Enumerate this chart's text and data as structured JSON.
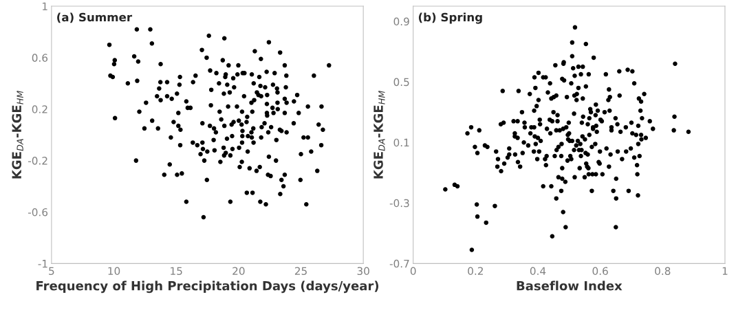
{
  "chart_data": [
    {
      "type": "scatter",
      "title": "(a) Summer",
      "xlabel": "Frequency of High Precipitation Days (days/year)",
      "ylabel": "KGE$_{DA}$-KGE$_{HM}$",
      "xlim": [
        5,
        30
      ],
      "xticks": [
        5,
        10,
        15,
        20,
        25,
        30
      ],
      "ylim": [
        -1,
        1
      ],
      "yticks": [
        -1,
        -0.6,
        -0.2,
        0.2,
        0.6,
        1
      ],
      "grid": false,
      "marker": "circle",
      "series": [
        {
          "color": "#000000",
          "x": [
            9.64,
            11.84,
            12.92,
            13.05,
            9.72,
            9.91,
            10.07,
            10.02,
            10.09,
            11.63,
            11.95,
            11.12,
            11.87,
            12.04,
            12.58,
            12.45,
            13.07,
            11.78,
            13.75,
            13.46,
            13.63,
            13.73,
            13.75,
            13.54,
            14.27,
            14.27,
            14.64,
            15.06,
            15.26,
            15.3,
            15.17,
            14.79,
            15.17,
            15.34,
            14.57,
            15.32,
            14.48,
            14.04,
            15.07,
            15.45,
            15.81,
            15.92,
            16.14,
            16.55,
            16.35,
            15.81,
            16.33,
            16.69,
            16.95,
            17.1,
            17.14,
            17.49,
            17.25,
            17.46,
            17.19,
            17.06,
            17.62,
            17.44,
            17.72,
            17.81,
            17.78,
            17.1,
            17.7,
            18.03,
            18.18,
            18.0,
            18.07,
            18.54,
            18.22,
            18.43,
            18.73,
            18.86,
            18.48,
            18.61,
            18.82,
            18.86,
            18.93,
            18.97,
            19.09,
            19.2,
            19.16,
            19.29,
            19.07,
            18.8,
            18.84,
            18.97,
            19.34,
            19.34,
            19.48,
            19.57,
            19.64,
            19.44,
            19.6,
            19.51,
            19.87,
            19.91,
            19.98,
            20.02,
            20.04,
            20.09,
            20.24,
            20.28,
            20.33,
            20.47,
            20.44,
            20.31,
            20.3,
            20.28,
            20.26,
            20.64,
            20.69,
            20.75,
            20.73,
            20.66,
            20.88,
            21.06,
            21.12,
            21.1,
            21.03,
            21.03,
            21.06,
            21.18,
            21.21,
            21.25,
            21.3,
            21.2,
            21.44,
            21.47,
            21.59,
            21.66,
            21.79,
            21.75,
            21.81,
            21.7,
            21.74,
            21.85,
            21.81,
            22.08,
            22.19,
            22.13,
            22.29,
            22.27,
            22.27,
            22.29,
            22.25,
            22.43,
            22.38,
            22.43,
            22.36,
            22.57,
            22.61,
            22.72,
            22.8,
            22.76,
            22.89,
            23.03,
            23.0,
            23.08,
            23.12,
            23.12,
            23.14,
            23.33,
            23.31,
            23.44,
            23.34,
            23.44,
            23.6,
            23.7,
            23.7,
            23.83,
            23.79,
            23.7,
            23.85,
            23.7,
            23.85,
            24.44,
            24.7,
            24.42,
            24.82,
            24.96,
            25.0,
            25.21,
            25.56,
            25.56,
            25.43,
            25.82,
            26.04,
            26.31,
            26.42,
            26.65,
            26.76,
            26.63,
            27.25
          ],
          "values": [
            0.7,
            0.82,
            0.82,
            0.71,
            0.46,
            0.45,
            0.58,
            0.55,
            0.13,
            0.61,
            0.57,
            0.4,
            0.42,
            0.18,
            0.25,
            0.05,
            0.11,
            -0.2,
            0.55,
            0.3,
            0.36,
            0.41,
            0.27,
            0.05,
            0.41,
            0.3,
            0.28,
            0.32,
            0.39,
            0.45,
            0.17,
            0.1,
            0.07,
            0.04,
            -0.02,
            -0.08,
            -0.23,
            -0.31,
            -0.31,
            -0.3,
            0.26,
            0.21,
            0.21,
            0.46,
            0.41,
            -0.52,
            -0.06,
            -0.08,
            -0.15,
            -0.06,
            -0.11,
            -0.13,
            -0.2,
            -0.35,
            -0.64,
            0.66,
            0.77,
            0.6,
            0.5,
            0.35,
            0.23,
            0.09,
            0.07,
            0.05,
            0.02,
            -0.04,
            -0.12,
            -0.21,
            0.48,
            0.4,
            0.58,
            0.75,
            0.18,
            0.12,
            0.32,
            0.07,
            0.45,
            0.47,
            0.39,
            0.54,
            0.22,
            0.33,
            -0.03,
            -0.1,
            -0.16,
            -0.14,
            -0.16,
            -0.52,
            -0.01,
            0.44,
            0.37,
            0.08,
            0.1,
            -0.11,
            0.22,
            0.47,
            0.54,
            0.11,
            -0.1,
            -0.25,
            0.08,
            0.18,
            0.48,
            0.48,
            0.3,
            0.03,
            -0.01,
            -0.06,
            -0.21,
            0.1,
            0.14,
            -0.01,
            -0.13,
            -0.45,
            -0.26,
            0.47,
            -0.45,
            0.18,
            0.25,
            0.02,
            -0.02,
            0.05,
            0.4,
            0.27,
            0.65,
            -0.06,
            -0.28,
            0.33,
            0.31,
            0.45,
            0.59,
            0.38,
            0.3,
            -0.25,
            -0.52,
            0.06,
            -0.02,
            0.09,
            -0.54,
            0.37,
            0.31,
            0.24,
            0.17,
            0.15,
            0.49,
            0.72,
            0.02,
            -0.17,
            -0.31,
            -0.32,
            0.06,
            0.21,
            0.17,
            0.39,
            0.48,
            -0.04,
            -0.2,
            0.36,
            0.33,
            0.25,
            0.2,
            0.64,
            0.04,
            0.03,
            -0.46,
            -0.35,
            -0.4,
            -0.31,
            0.54,
            0.46,
            0.37,
            0.28,
            0.25,
            0.17,
            0.02,
            0.26,
            0.31,
            0.09,
            0.17,
            -0.35,
            -0.15,
            -0.02,
            0.22,
            -0.02,
            -0.54,
            -0.13,
            0.46,
            -0.28,
            0.08,
            0.22,
            0.04,
            -0.08,
            0.54
          ]
        }
      ]
    },
    {
      "type": "scatter",
      "title": "(b) Spring",
      "xlabel": "Baseflow Index",
      "ylabel": "KGE$_{DA}$-KGE$_{HM}$",
      "xlim": [
        0,
        1
      ],
      "xticks": [
        0,
        0.2,
        0.4,
        0.6,
        0.8,
        1
      ],
      "ylim": [
        -0.7,
        1.0
      ],
      "yticks": [
        -0.7,
        -0.3,
        0.1,
        0.5,
        0.9
      ],
      "grid": false,
      "marker": "circle",
      "series": [
        {
          "color": "#000000",
          "x": [
            0.103,
            0.133,
            0.142,
            0.174,
            0.186,
            0.212,
            0.198,
            0.206,
            0.204,
            0.206,
            0.234,
            0.188,
            0.23,
            0.238,
            0.262,
            0.266,
            0.272,
            0.27,
            0.282,
            0.292,
            0.281,
            0.29,
            0.287,
            0.303,
            0.308,
            0.308,
            0.322,
            0.335,
            0.326,
            0.326,
            0.335,
            0.327,
            0.336,
            0.343,
            0.338,
            0.349,
            0.351,
            0.355,
            0.357,
            0.358,
            0.369,
            0.374,
            0.376,
            0.379,
            0.388,
            0.387,
            0.388,
            0.392,
            0.389,
            0.39,
            0.393,
            0.396,
            0.398,
            0.4,
            0.402,
            0.402,
            0.404,
            0.406,
            0.407,
            0.409,
            0.417,
            0.417,
            0.425,
            0.423,
            0.426,
            0.428,
            0.429,
            0.432,
            0.439,
            0.438,
            0.44,
            0.443,
            0.443,
            0.446,
            0.446,
            0.45,
            0.451,
            0.454,
            0.456,
            0.459,
            0.459,
            0.459,
            0.46,
            0.463,
            0.466,
            0.463,
            0.466,
            0.47,
            0.475,
            0.475,
            0.478,
            0.478,
            0.478,
            0.476,
            0.481,
            0.482,
            0.483,
            0.484,
            0.481,
            0.488,
            0.489,
            0.491,
            0.493,
            0.495,
            0.496,
            0.5,
            0.499,
            0.497,
            0.502,
            0.504,
            0.507,
            0.507,
            0.51,
            0.51,
            0.51,
            0.513,
            0.519,
            0.518,
            0.517,
            0.516,
            0.516,
            0.518,
            0.523,
            0.524,
            0.525,
            0.528,
            0.53,
            0.53,
            0.532,
            0.534,
            0.536,
            0.538,
            0.538,
            0.54,
            0.541,
            0.543,
            0.544,
            0.544,
            0.545,
            0.55,
            0.551,
            0.553,
            0.554,
            0.554,
            0.555,
            0.558,
            0.56,
            0.56,
            0.563,
            0.563,
            0.562,
            0.565,
            0.565,
            0.568,
            0.57,
            0.573,
            0.575,
            0.573,
            0.577,
            0.577,
            0.579,
            0.584,
            0.585,
            0.586,
            0.586,
            0.587,
            0.589,
            0.592,
            0.595,
            0.598,
            0.599,
            0.601,
            0.605,
            0.607,
            0.614,
            0.618,
            0.62,
            0.626,
            0.628,
            0.628,
            0.63,
            0.631,
            0.633,
            0.636,
            0.636,
            0.642,
            0.649,
            0.65,
            0.651,
            0.651,
            0.655,
            0.656,
            0.661,
            0.662,
            0.665,
            0.67,
            0.682,
            0.683,
            0.688,
            0.691,
            0.698,
            0.7,
            0.703,
            0.703,
            0.709,
            0.709,
            0.715,
            0.718,
            0.719,
            0.721,
            0.722,
            0.722,
            0.726,
            0.724,
            0.729,
            0.731,
            0.731,
            0.734,
            0.732,
            0.741,
            0.746,
            0.759,
            0.769,
            0.836,
            0.838,
            0.84,
            0.883
          ],
          "values": [
            -0.21,
            -0.18,
            -0.19,
            0.16,
            0.2,
            0.18,
            0.07,
            0.03,
            -0.31,
            -0.39,
            -0.43,
            -0.61,
            0.08,
            0.07,
            -0.32,
            0.04,
            -0.01,
            -0.06,
            -0.09,
            -0.04,
            0.22,
            0.23,
            0.44,
            0.0,
            0.06,
            0.02,
            0.24,
            0.24,
            0.16,
            0.14,
            0.13,
            0.02,
            -0.03,
            -0.06,
            0.44,
            0.3,
            0.03,
            0.1,
            0.23,
            0.2,
            0.08,
            0.42,
            0.16,
            0.2,
            0.2,
            0.04,
            0.31,
            0.46,
            0.53,
            0.14,
            0.09,
            0.34,
            -0.01,
            0.13,
            0.56,
            0.38,
            0.04,
            0.25,
            0.22,
            0.11,
            -0.19,
            0.53,
            0.53,
            -0.01,
            -0.05,
            0.01,
            0.19,
            0.43,
            0.49,
            0.25,
            0.16,
            -0.19,
            0.39,
            -0.52,
            0.24,
            0.3,
            0.4,
            0.01,
            0.61,
            0.18,
            0.41,
            -0.27,
            0.05,
            0.28,
            0.07,
            0.24,
            -0.13,
            0.18,
            0.01,
            -0.22,
            -0.14,
            -0.07,
            0.52,
            0.09,
            0.19,
            0.62,
            0.63,
            0.51,
            -0.36,
            -0.16,
            -0.46,
            0.2,
            0.4,
            -0.02,
            0.15,
            0.16,
            0.23,
            0.12,
            0.11,
            0.01,
            0.49,
            -0.01,
            0.76,
            0.67,
            0.11,
            0.59,
            0.86,
            0.54,
            0.41,
            0.29,
            0.05,
            -0.13,
            0.08,
            0.38,
            0.42,
            0.11,
            0.6,
            0.46,
            0.05,
            -0.07,
            0.09,
            0.55,
            0.01,
            0.05,
            0.23,
            0.14,
            0.6,
            0.39,
            0.27,
            -0.13,
            0.12,
            0.03,
            0.47,
            0.75,
            -0.04,
            -0.06,
            0.02,
            0.22,
            0.55,
            -0.11,
            -0.07,
            0.26,
            0.15,
            0.32,
            0.3,
            -0.22,
            -0.11,
            0.07,
            0.2,
            0.19,
            0.66,
            0.09,
            0.28,
            0.35,
            -0.11,
            0.21,
            0.17,
            0.31,
            -0.03,
            -0.04,
            0.04,
            0.25,
            0.24,
            -0.11,
            0.3,
            0.55,
            0.06,
            0.38,
            -0.06,
            0.45,
            0.31,
            0.4,
            0.02,
            0.2,
            0.18,
            -0.22,
            0.26,
            -0.46,
            -0.27,
            -0.14,
            0.22,
            0.04,
            0.57,
            0.41,
            0.17,
            -0.01,
            0.2,
            0.04,
            0.58,
            -0.22,
            0.06,
            0.23,
            0.57,
            0.16,
            0.49,
            0.0,
            0.15,
            -0.05,
            -0.11,
            -0.25,
            0.09,
            0.21,
            0.01,
            0.39,
            0.31,
            0.37,
            0.15,
            0.26,
            0.12,
            0.42,
            0.13,
            0.24,
            0.19,
            0.18,
            0.27,
            0.62,
            0.17
          ]
        }
      ]
    }
  ]
}
